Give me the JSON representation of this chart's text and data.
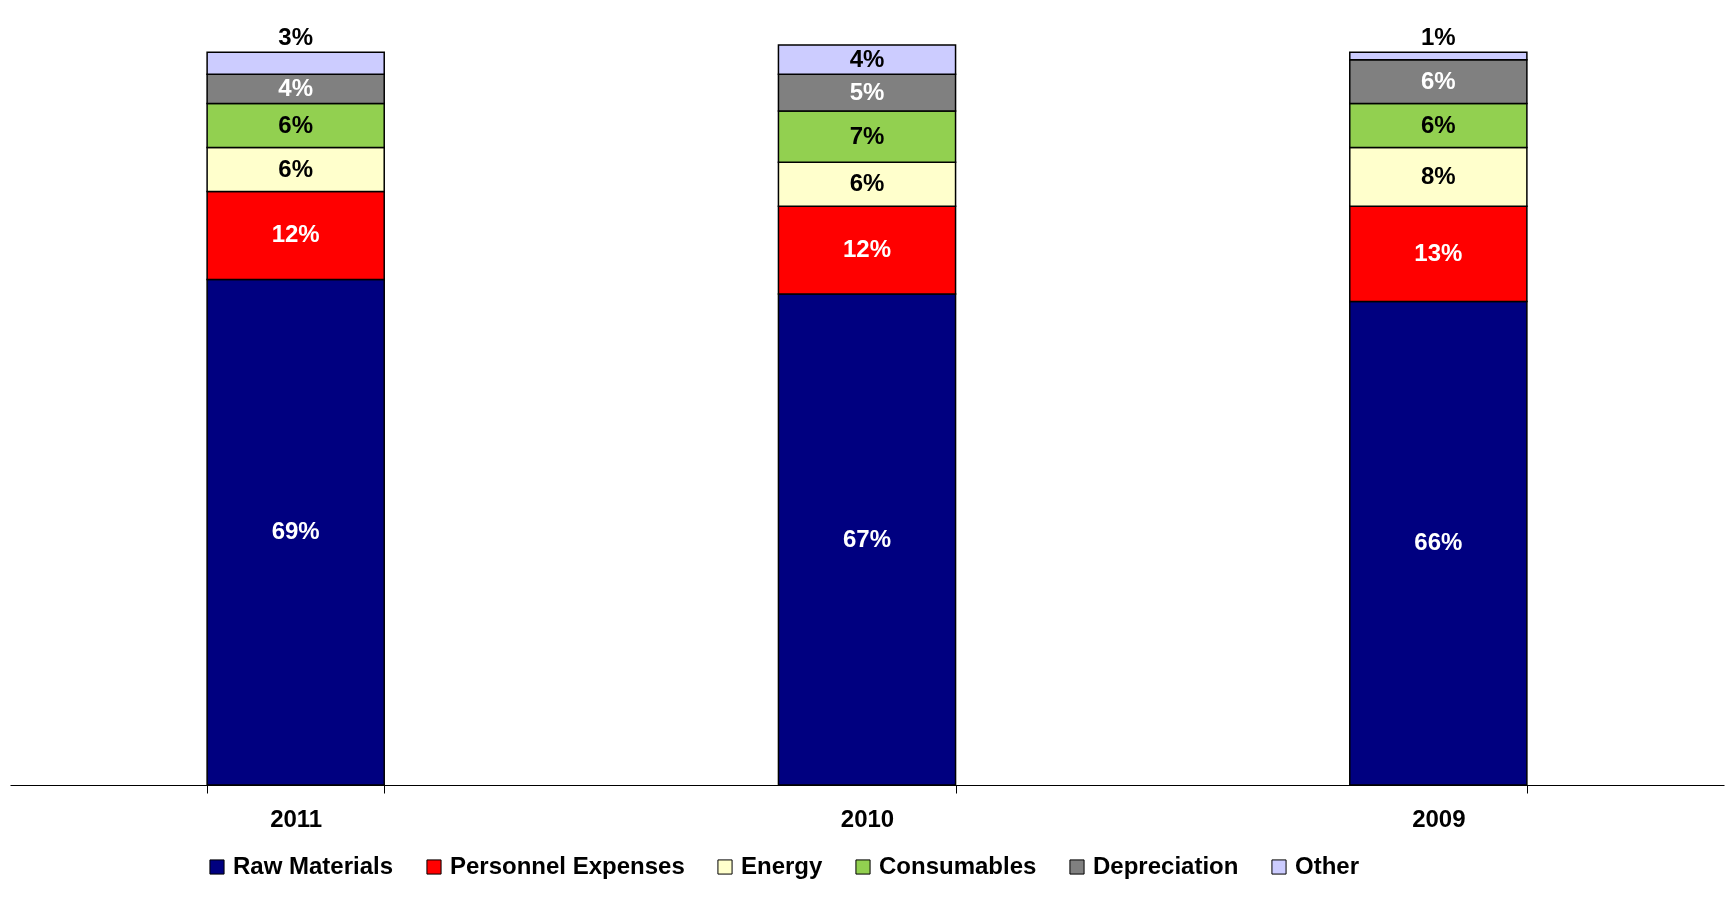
{
  "chart_data": {
    "type": "bar",
    "stacked": true,
    "categories": [
      "2011",
      "2010",
      "2009"
    ],
    "legend": "bottom",
    "grid": false,
    "series": [
      {
        "name": "Raw Materials",
        "color": "#000080",
        "values": [
          69,
          67,
          66
        ],
        "value_labels": [
          "69%",
          "67%",
          "66%"
        ]
      },
      {
        "name": "Personnel Expenses",
        "color": "#ff0000",
        "values": [
          12,
          12,
          13
        ],
        "value_labels": [
          "12%",
          "12%",
          "13%"
        ]
      },
      {
        "name": "Energy",
        "color": "#ffffcc",
        "values": [
          6,
          6,
          8
        ],
        "value_labels": [
          "6%",
          "6%",
          "8%"
        ]
      },
      {
        "name": "Consumables",
        "color": "#92d050",
        "values": [
          6,
          7,
          6
        ],
        "value_labels": [
          "6%",
          "7%",
          "6%"
        ]
      },
      {
        "name": "Depreciation",
        "color": "#808080",
        "values": [
          4,
          5,
          6
        ],
        "value_labels": [
          "4%",
          "5%",
          "6%"
        ]
      },
      {
        "name": "Other",
        "color": "#ccccff",
        "values": [
          3,
          4,
          1
        ],
        "value_labels": [
          "3%",
          "4%",
          "1%"
        ]
      }
    ]
  }
}
